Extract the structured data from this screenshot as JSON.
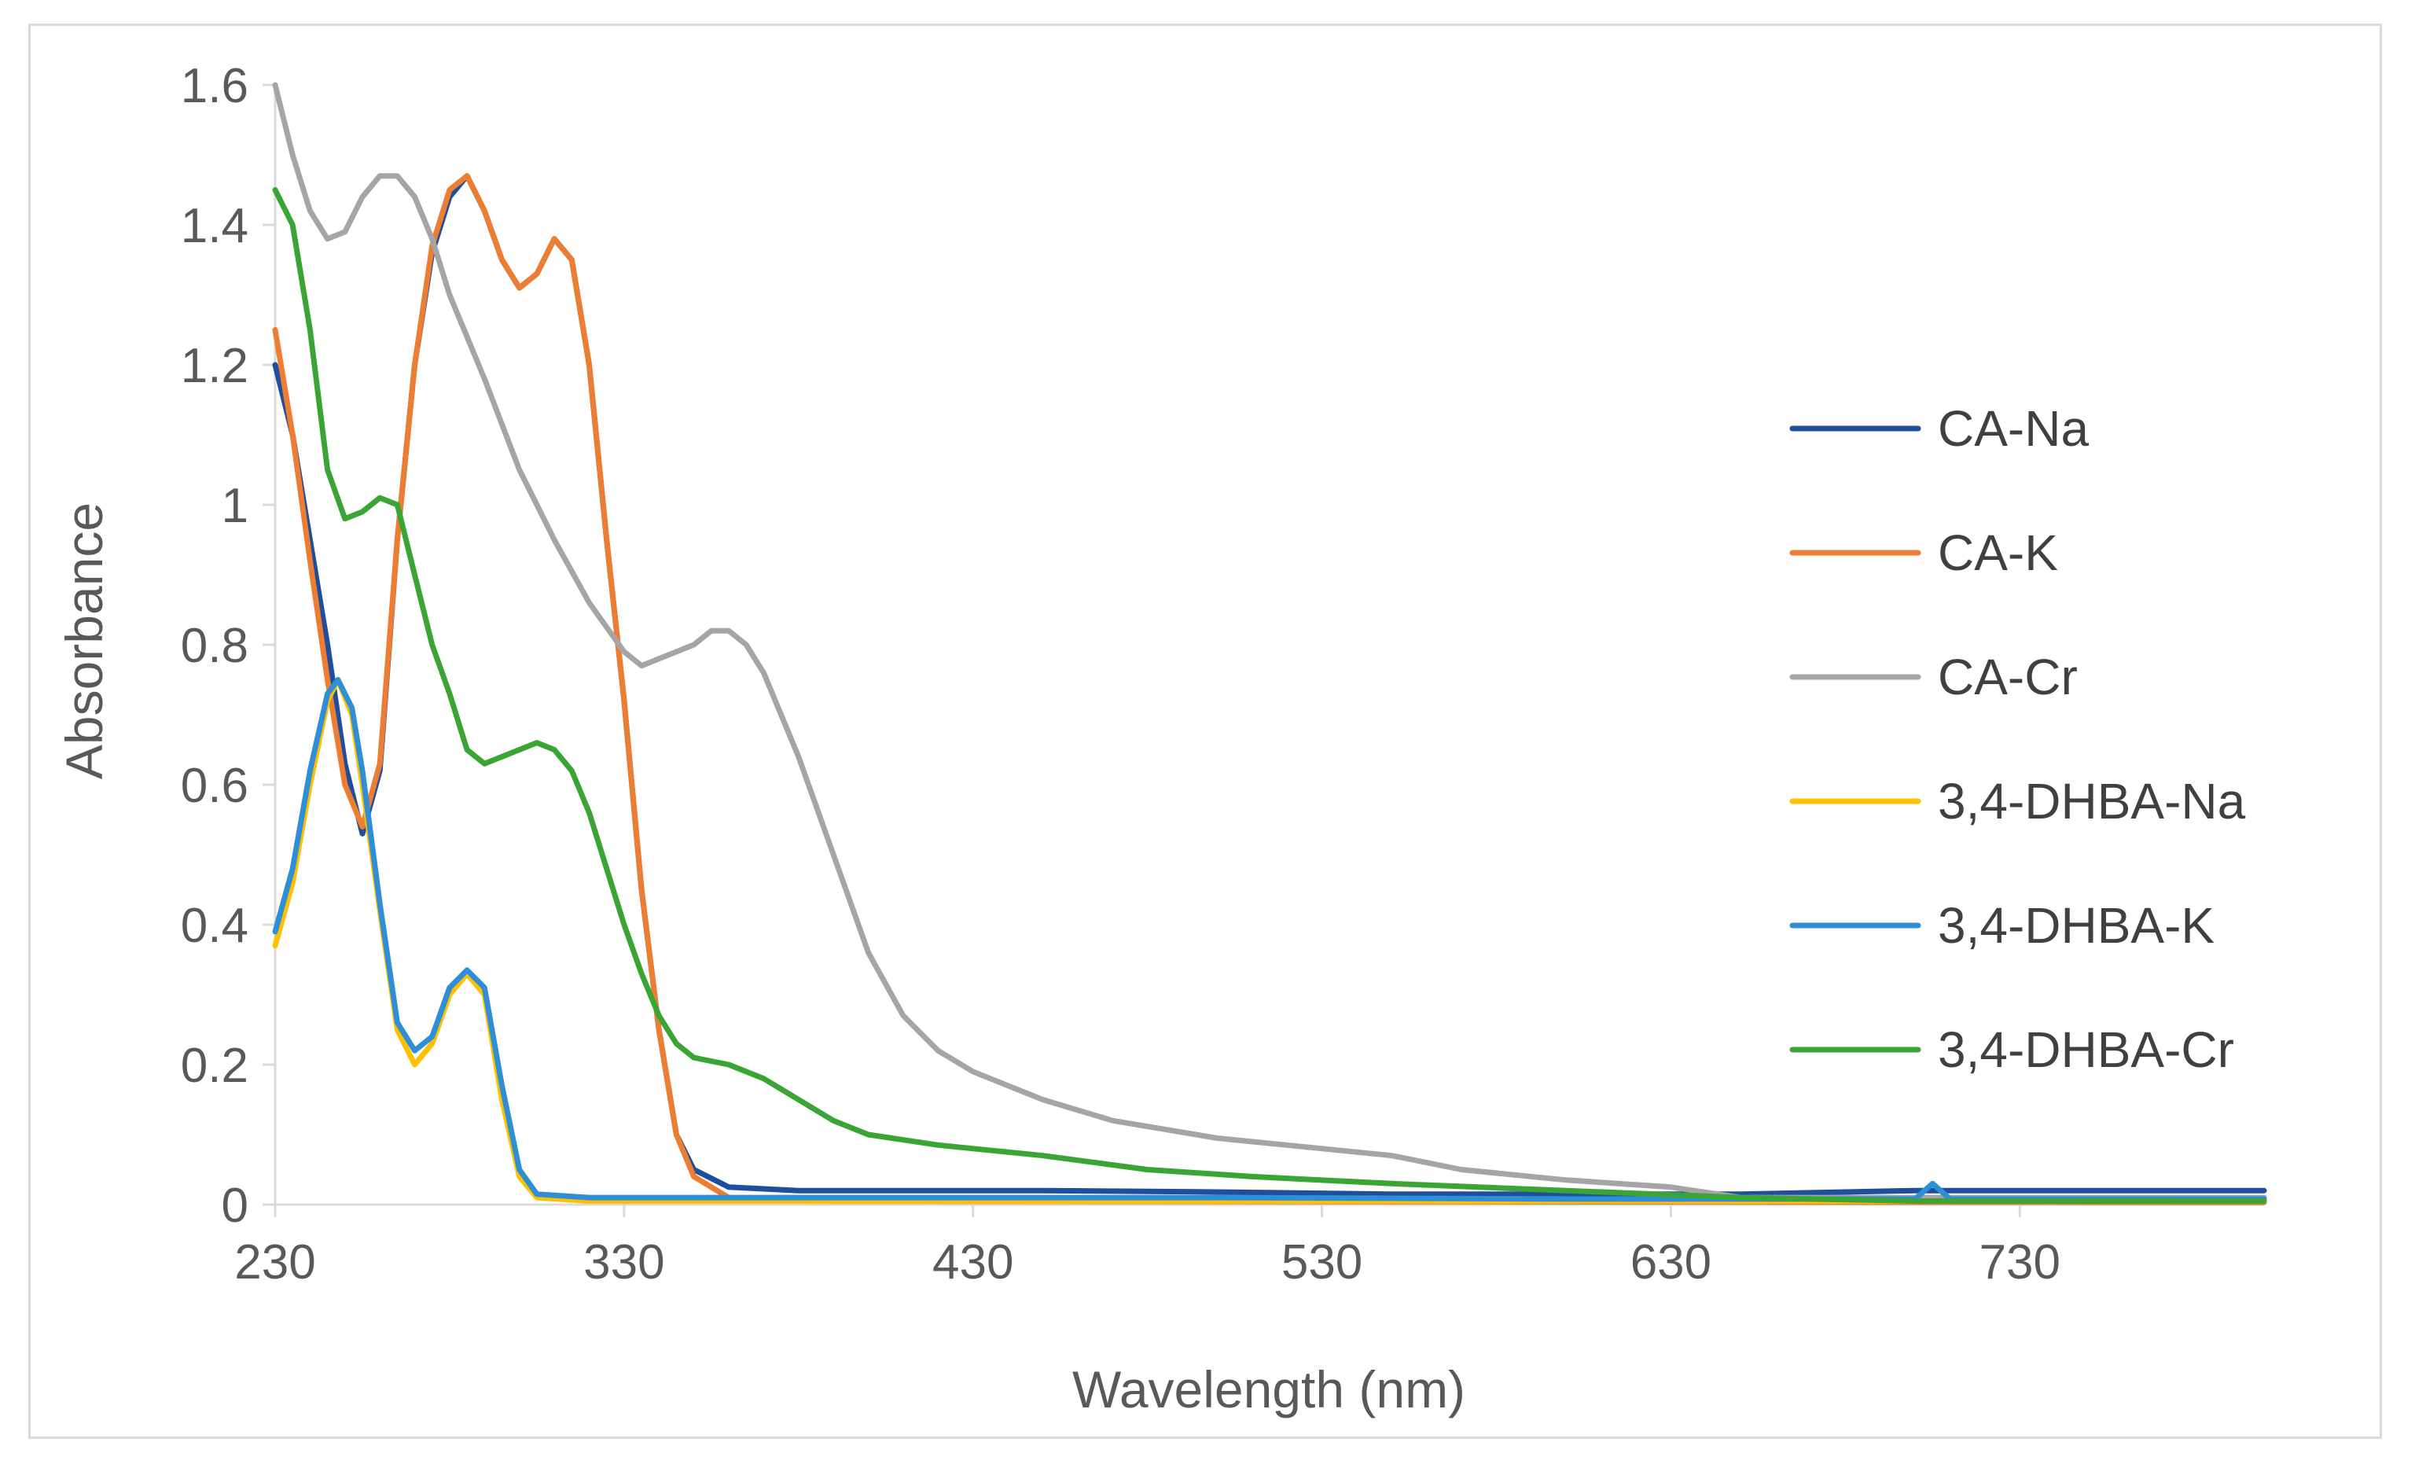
{
  "chart_data": {
    "type": "line",
    "title": "",
    "xlabel": "Wavelength (nm)",
    "ylabel": "Absorbance",
    "xlim": [
      230,
      800
    ],
    "ylim": [
      0,
      1.6
    ],
    "x_ticks": [
      230,
      330,
      430,
      530,
      630,
      730
    ],
    "y_ticks": [
      "0",
      "0.2",
      "0.4",
      "0.6",
      "0.8",
      "1",
      "1.2",
      "1.4",
      "1.6"
    ],
    "grid": false,
    "legend_position": "right",
    "series": [
      {
        "name": "CA-Na",
        "color": "#1f4e9c",
        "points": [
          [
            230,
            1.2
          ],
          [
            235,
            1.1
          ],
          [
            240,
            0.95
          ],
          [
            245,
            0.8
          ],
          [
            250,
            0.63
          ],
          [
            255,
            0.53
          ],
          [
            260,
            0.62
          ],
          [
            265,
            0.95
          ],
          [
            270,
            1.2
          ],
          [
            275,
            1.36
          ],
          [
            280,
            1.44
          ],
          [
            285,
            1.47
          ],
          [
            290,
            1.42
          ],
          [
            295,
            1.35
          ],
          [
            300,
            1.31
          ],
          [
            305,
            1.33
          ],
          [
            310,
            1.38
          ],
          [
            315,
            1.35
          ],
          [
            320,
            1.2
          ],
          [
            325,
            0.95
          ],
          [
            330,
            0.72
          ],
          [
            335,
            0.45
          ],
          [
            340,
            0.25
          ],
          [
            345,
            0.1
          ],
          [
            350,
            0.05
          ],
          [
            360,
            0.025
          ],
          [
            380,
            0.02
          ],
          [
            400,
            0.02
          ],
          [
            450,
            0.02
          ],
          [
            500,
            0.018
          ],
          [
            550,
            0.015
          ],
          [
            600,
            0.015
          ],
          [
            650,
            0.015
          ],
          [
            700,
            0.02
          ],
          [
            740,
            0.02
          ],
          [
            800,
            0.02
          ]
        ]
      },
      {
        "name": "CA-K",
        "color": "#ed7d31",
        "points": [
          [
            230,
            1.25
          ],
          [
            235,
            1.1
          ],
          [
            240,
            0.92
          ],
          [
            245,
            0.75
          ],
          [
            250,
            0.6
          ],
          [
            255,
            0.54
          ],
          [
            260,
            0.63
          ],
          [
            265,
            0.95
          ],
          [
            270,
            1.2
          ],
          [
            275,
            1.37
          ],
          [
            280,
            1.45
          ],
          [
            285,
            1.47
          ],
          [
            290,
            1.42
          ],
          [
            295,
            1.35
          ],
          [
            300,
            1.31
          ],
          [
            305,
            1.33
          ],
          [
            310,
            1.38
          ],
          [
            315,
            1.35
          ],
          [
            320,
            1.2
          ],
          [
            325,
            0.95
          ],
          [
            330,
            0.72
          ],
          [
            335,
            0.45
          ],
          [
            340,
            0.25
          ],
          [
            345,
            0.1
          ],
          [
            350,
            0.04
          ],
          [
            360,
            0.01
          ],
          [
            380,
            0.005
          ],
          [
            800,
            0.003
          ]
        ]
      },
      {
        "name": "CA-Cr",
        "color": "#a5a5a5",
        "points": [
          [
            230,
            1.6
          ],
          [
            235,
            1.5
          ],
          [
            240,
            1.42
          ],
          [
            245,
            1.38
          ],
          [
            250,
            1.39
          ],
          [
            255,
            1.44
          ],
          [
            260,
            1.47
          ],
          [
            265,
            1.47
          ],
          [
            270,
            1.44
          ],
          [
            275,
            1.38
          ],
          [
            280,
            1.3
          ],
          [
            290,
            1.18
          ],
          [
            300,
            1.05
          ],
          [
            310,
            0.95
          ],
          [
            320,
            0.86
          ],
          [
            330,
            0.79
          ],
          [
            335,
            0.77
          ],
          [
            340,
            0.78
          ],
          [
            345,
            0.79
          ],
          [
            350,
            0.8
          ],
          [
            355,
            0.82
          ],
          [
            360,
            0.82
          ],
          [
            365,
            0.8
          ],
          [
            370,
            0.76
          ],
          [
            380,
            0.64
          ],
          [
            390,
            0.5
          ],
          [
            400,
            0.36
          ],
          [
            410,
            0.27
          ],
          [
            420,
            0.22
          ],
          [
            430,
            0.19
          ],
          [
            450,
            0.15
          ],
          [
            470,
            0.12
          ],
          [
            500,
            0.095
          ],
          [
            530,
            0.08
          ],
          [
            550,
            0.07
          ],
          [
            570,
            0.05
          ],
          [
            600,
            0.035
          ],
          [
            630,
            0.025
          ],
          [
            650,
            0.01
          ],
          [
            700,
            0.01
          ],
          [
            800,
            0.01
          ]
        ]
      },
      {
        "name": "3,4-DHBA-Na",
        "color": "#ffc000",
        "points": [
          [
            230,
            0.37
          ],
          [
            235,
            0.46
          ],
          [
            240,
            0.6
          ],
          [
            245,
            0.72
          ],
          [
            248,
            0.75
          ],
          [
            252,
            0.7
          ],
          [
            255,
            0.6
          ],
          [
            260,
            0.42
          ],
          [
            265,
            0.25
          ],
          [
            270,
            0.2
          ],
          [
            275,
            0.23
          ],
          [
            280,
            0.3
          ],
          [
            285,
            0.33
          ],
          [
            290,
            0.3
          ],
          [
            295,
            0.15
          ],
          [
            300,
            0.04
          ],
          [
            305,
            0.01
          ],
          [
            320,
            0.005
          ],
          [
            800,
            0.005
          ]
        ]
      },
      {
        "name": "3,4-DHBA-K",
        "color": "#2e8fd6",
        "points": [
          [
            230,
            0.39
          ],
          [
            235,
            0.48
          ],
          [
            240,
            0.62
          ],
          [
            245,
            0.73
          ],
          [
            248,
            0.75
          ],
          [
            252,
            0.71
          ],
          [
            255,
            0.62
          ],
          [
            260,
            0.43
          ],
          [
            265,
            0.26
          ],
          [
            270,
            0.22
          ],
          [
            275,
            0.24
          ],
          [
            280,
            0.31
          ],
          [
            285,
            0.335
          ],
          [
            290,
            0.31
          ],
          [
            295,
            0.17
          ],
          [
            300,
            0.05
          ],
          [
            305,
            0.015
          ],
          [
            320,
            0.01
          ],
          [
            400,
            0.01
          ],
          [
            500,
            0.01
          ],
          [
            600,
            0.008
          ],
          [
            700,
            0.008
          ],
          [
            705,
            0.03
          ],
          [
            710,
            0.008
          ],
          [
            800,
            0.008
          ]
        ]
      },
      {
        "name": "3,4-DHBA-Cr",
        "color": "#3aa535",
        "points": [
          [
            230,
            1.45
          ],
          [
            235,
            1.4
          ],
          [
            240,
            1.25
          ],
          [
            245,
            1.05
          ],
          [
            250,
            0.98
          ],
          [
            255,
            0.99
          ],
          [
            260,
            1.01
          ],
          [
            265,
            1.0
          ],
          [
            270,
            0.9
          ],
          [
            275,
            0.8
          ],
          [
            280,
            0.73
          ],
          [
            285,
            0.65
          ],
          [
            290,
            0.63
          ],
          [
            295,
            0.64
          ],
          [
            300,
            0.65
          ],
          [
            305,
            0.66
          ],
          [
            310,
            0.65
          ],
          [
            315,
            0.62
          ],
          [
            320,
            0.56
          ],
          [
            325,
            0.48
          ],
          [
            330,
            0.4
          ],
          [
            335,
            0.33
          ],
          [
            340,
            0.27
          ],
          [
            345,
            0.23
          ],
          [
            350,
            0.21
          ],
          [
            360,
            0.2
          ],
          [
            370,
            0.18
          ],
          [
            380,
            0.15
          ],
          [
            390,
            0.12
          ],
          [
            400,
            0.1
          ],
          [
            420,
            0.085
          ],
          [
            450,
            0.07
          ],
          [
            480,
            0.05
          ],
          [
            510,
            0.04
          ],
          [
            550,
            0.03
          ],
          [
            600,
            0.02
          ],
          [
            650,
            0.01
          ],
          [
            700,
            0.005
          ],
          [
            800,
            0.005
          ]
        ]
      }
    ]
  }
}
